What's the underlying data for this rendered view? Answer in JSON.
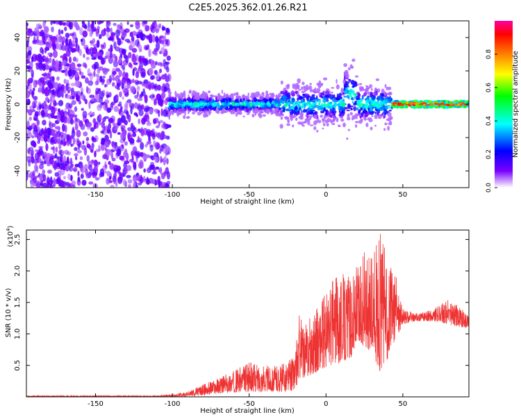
{
  "chart_data": [
    {
      "type": "heatmap",
      "title": "C2E5.2025.362.01.26.R21",
      "xlabel": "Height of straight line (km)",
      "ylabel": "Frequency (Hz)",
      "xlim": [
        -195,
        93
      ],
      "ylim": [
        -50,
        50
      ],
      "xticks": [
        -150,
        -100,
        -50,
        0,
        50
      ],
      "yticks": [
        -40,
        -20,
        0,
        20,
        40
      ],
      "colorbar": {
        "label": "Normalized spectral amplitude",
        "range": [
          0,
          1
        ],
        "ticks": [
          0.0,
          0.2,
          0.4,
          0.6,
          0.8
        ],
        "tick_labels": [
          "0.0",
          "0.2",
          "0.4",
          "0.6",
          "0.8"
        ],
        "colors": [
          "#ffffff",
          "#7a00ff",
          "#0000ff",
          "#00ffff",
          "#00ff00",
          "#ffff00",
          "#ff8000",
          "#ff0000",
          "#ff00a0"
        ]
      },
      "regions": [
        {
          "x_range": [
            -195,
            -102
          ],
          "freq_range": [
            -50,
            50
          ],
          "amplitude": "low (0.0-0.2), scattered noise"
        },
        {
          "x_range": [
            -102,
            -30
          ],
          "freq_range": [
            -8,
            8
          ],
          "amplitude": "0.2-0.5, band centered near 0 Hz"
        },
        {
          "x_range": [
            -30,
            40
          ],
          "freq_range": [
            -15,
            20
          ],
          "amplitude": "0.2-0.5, broadened band with spike near 17 km"
        },
        {
          "x_range": [
            43,
            93
          ],
          "freq_range": [
            -2,
            2
          ],
          "amplitude": "0.5-1.0, narrow band at 0 Hz"
        }
      ]
    },
    {
      "type": "line",
      "xlabel": "Height of straight line (km)",
      "ylabel": "SNR (10 * v/v)",
      "y_multiplier": "(x10",
      "y_multiplier_exp": "4",
      "y_multiplier_close": ")",
      "xlim": [
        -195,
        93
      ],
      "ylim": [
        0,
        2.65
      ],
      "xticks": [
        -150,
        -100,
        -50,
        0,
        50
      ],
      "yticks": [
        0.5,
        1.0,
        1.5,
        2.0,
        2.5
      ],
      "ytick_labels": [
        "0.5",
        "1.0",
        "1.5",
        "2.0",
        "2.5"
      ],
      "series": [
        {
          "name": "SNR",
          "color": "#ee3333",
          "envelope": {
            "x": [
              -195,
              -110,
              -100,
              -90,
              -80,
              -70,
              -60,
              -50,
              -40,
              -30,
              -25,
              -20,
              -17,
              -15,
              -10,
              -5,
              0,
              5,
              10,
              15,
              20,
              25,
              30,
              35,
              40,
              45,
              50,
              60,
              70,
              80,
              88,
              93
            ],
            "y_min": [
              0.0,
              0.0,
              0.0,
              0.01,
              0.02,
              0.05,
              0.07,
              0.08,
              0.08,
              0.08,
              0.08,
              0.1,
              0.3,
              0.3,
              0.35,
              0.4,
              0.45,
              0.5,
              0.55,
              0.6,
              0.7,
              0.8,
              0.7,
              0.4,
              0.6,
              0.9,
              1.15,
              1.2,
              1.2,
              1.15,
              1.1,
              1.1
            ],
            "y_max": [
              0.02,
              0.02,
              0.04,
              0.08,
              0.2,
              0.3,
              0.42,
              0.55,
              0.5,
              0.5,
              0.6,
              0.7,
              1.45,
              1.1,
              1.3,
              1.45,
              1.65,
              1.9,
              2.0,
              1.95,
              2.1,
              2.3,
              2.2,
              2.65,
              2.2,
              2.0,
              1.4,
              1.32,
              1.4,
              1.55,
              1.4,
              1.3
            ]
          }
        }
      ]
    }
  ]
}
